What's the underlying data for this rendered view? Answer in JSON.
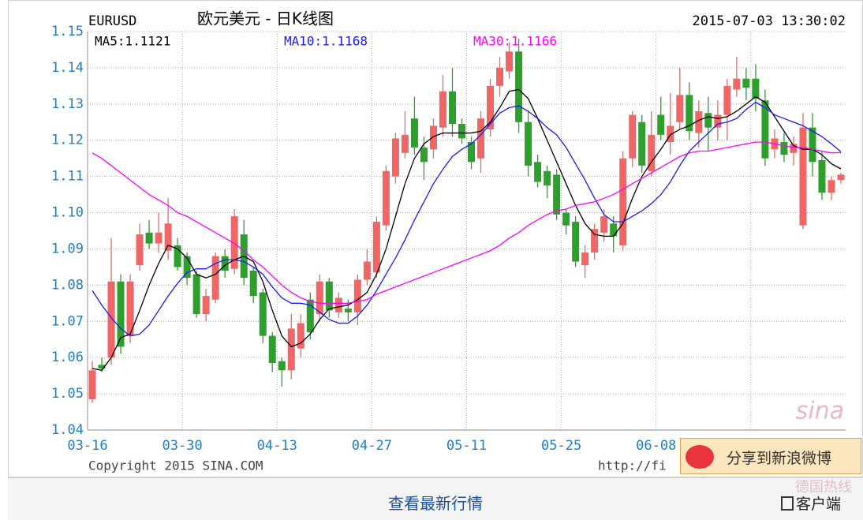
{
  "chart_data": {
    "type": "candlestick",
    "symbol": "EURUSD",
    "title": "欧元美元 - 日K线图",
    "timestamp": "2015-07-03 13:30:02",
    "categories": [
      "03-16",
      null,
      null,
      null,
      null,
      null,
      null,
      null,
      null,
      null,
      "03-30",
      null,
      null,
      null,
      null,
      null,
      null,
      null,
      null,
      null,
      "04-13",
      null,
      null,
      null,
      null,
      null,
      null,
      null,
      null,
      null,
      "04-27",
      null,
      null,
      null,
      null,
      null,
      null,
      null,
      null,
      null,
      "05-11",
      null,
      null,
      null,
      null,
      null,
      null,
      null,
      null,
      null,
      "05-25",
      null,
      null,
      null,
      null,
      null,
      null,
      null,
      null,
      null,
      "06-08",
      null,
      null,
      null,
      null,
      null,
      null,
      null,
      null,
      null,
      null,
      null,
      null,
      null,
      null,
      null,
      null,
      null,
      null,
      null
    ],
    "open": [
      1.0485,
      1.058,
      1.06,
      1.081,
      1.066,
      1.0855,
      1.0945,
      1.0915,
      1.0895,
      1.091,
      1.088,
      1.083,
      1.072,
      1.076,
      1.088,
      1.0845,
      1.094,
      1.084,
      1.078,
      1.066,
      1.059,
      1.0565,
      1.0625,
      1.076,
      1.072,
      1.081,
      1.0725,
      1.0735,
      1.0725,
      1.0815,
      1.0835,
      1.0965,
      1.11,
      1.1165,
      1.126,
      1.118,
      1.1175,
      1.1235,
      1.1335,
      1.1245,
      1.1195,
      1.115,
      1.123,
      1.135,
      1.139,
      1.1445,
      1.125,
      1.114,
      1.1115,
      1.1105,
      1.1,
      1.0975,
      1.0855,
      1.089,
      1.0945,
      1.097,
      1.091,
      1.115,
      1.125,
      1.1115,
      1.127,
      1.1195,
      1.125,
      1.1325,
      1.122,
      1.1275,
      1.1235,
      1.127,
      1.134,
      1.137,
      1.137,
      1.131,
      1.1175,
      1.1195,
      1.1165,
      1.0965,
      1.1235,
      1.1145,
      1.1055,
      1.109
    ],
    "high": [
      1.059,
      1.06,
      1.093,
      1.083,
      1.083,
      1.097,
      1.098,
      1.1,
      1.104,
      1.093,
      1.089,
      1.084,
      1.079,
      1.089,
      1.09,
      1.101,
      1.098,
      1.085,
      1.079,
      1.067,
      1.06,
      1.072,
      1.072,
      1.078,
      1.083,
      1.082,
      1.078,
      1.076,
      1.083,
      1.09,
      1.099,
      1.113,
      1.122,
      1.128,
      1.132,
      1.121,
      1.126,
      1.138,
      1.14,
      1.126,
      1.121,
      1.128,
      1.137,
      1.143,
      1.147,
      1.148,
      1.128,
      1.116,
      1.113,
      1.112,
      1.101,
      1.099,
      1.091,
      1.097,
      1.101,
      1.099,
      1.117,
      1.128,
      1.127,
      1.128,
      1.132,
      1.133,
      1.14,
      1.136,
      1.131,
      1.132,
      1.131,
      1.137,
      1.143,
      1.14,
      1.141,
      1.134,
      1.123,
      1.122,
      1.121,
      1.1275,
      1.1275,
      1.117,
      1.11,
      1.111
    ],
    "low": [
      1.0475,
      1.056,
      1.058,
      1.061,
      1.064,
      1.084,
      1.09,
      1.089,
      1.087,
      1.084,
      1.08,
      1.071,
      1.07,
      1.075,
      1.082,
      1.083,
      1.08,
      1.075,
      1.064,
      1.056,
      1.052,
      1.054,
      1.06,
      1.065,
      1.07,
      1.071,
      1.071,
      1.07,
      1.069,
      1.08,
      1.082,
      1.095,
      1.108,
      1.115,
      1.116,
      1.109,
      1.115,
      1.121,
      1.121,
      1.119,
      1.112,
      1.111,
      1.121,
      1.132,
      1.137,
      1.122,
      1.11,
      1.107,
      1.104,
      1.098,
      1.094,
      1.085,
      1.082,
      1.087,
      1.092,
      1.089,
      1.0895,
      1.1125,
      1.111,
      1.11,
      1.12,
      1.116,
      1.123,
      1.12,
      1.118,
      1.117,
      1.12,
      1.12,
      1.132,
      1.131,
      1.128,
      1.113,
      1.115,
      1.114,
      1.113,
      1.0955,
      1.11,
      1.1035,
      1.1035,
      1.108
    ],
    "close": [
      1.0565,
      1.057,
      1.081,
      1.063,
      1.081,
      1.094,
      1.0915,
      1.0945,
      1.097,
      1.085,
      1.082,
      1.072,
      1.077,
      1.088,
      1.084,
      1.099,
      1.082,
      1.077,
      1.066,
      1.0585,
      1.0565,
      1.068,
      1.0695,
      1.067,
      1.081,
      1.073,
      1.0765,
      1.0725,
      1.0815,
      1.0865,
      1.0975,
      1.1115,
      1.1205,
      1.1215,
      1.118,
      1.114,
      1.124,
      1.1335,
      1.1245,
      1.1205,
      1.114,
      1.126,
      1.135,
      1.14,
      1.1445,
      1.125,
      1.113,
      1.1085,
      1.1075,
      1.0995,
      1.0965,
      1.0865,
      1.089,
      1.0955,
      1.099,
      1.0935,
      1.115,
      1.127,
      1.113,
      1.1215,
      1.1215,
      1.124,
      1.1325,
      1.1225,
      1.128,
      1.1235,
      1.127,
      1.135,
      1.137,
      1.1345,
      1.1315,
      1.115,
      1.1205,
      1.116,
      1.119,
      1.1235,
      1.114,
      1.1055,
      1.109,
      1.1105
    ],
    "up_color": "#f26565",
    "down_color": "#2ba02b",
    "series": [
      {
        "name": "MA5:1.1121",
        "color": "#000000",
        "values": [
          1.057,
          1.0565,
          1.06,
          1.0655,
          1.0665,
          1.073,
          1.08,
          1.086,
          1.091,
          1.09,
          1.0875,
          1.083,
          1.082,
          1.083,
          1.0855,
          1.087,
          1.088,
          1.0865,
          1.081,
          1.073,
          1.066,
          1.063,
          1.064,
          1.0665,
          1.0705,
          1.0735,
          1.074,
          1.0745,
          1.076,
          1.078,
          1.083,
          1.09,
          1.099,
          1.108,
          1.115,
          1.119,
          1.121,
          1.122,
          1.122,
          1.122,
          1.122,
          1.1225,
          1.125,
          1.129,
          1.1335,
          1.134,
          1.1315,
          1.126,
          1.12,
          1.114,
          1.108,
          1.102,
          1.097,
          1.094,
          1.0935,
          1.0935,
          1.097,
          1.104,
          1.11,
          1.114,
          1.1175,
          1.1215,
          1.123,
          1.124,
          1.1255,
          1.1265,
          1.126,
          1.1265,
          1.128,
          1.13,
          1.132,
          1.1305,
          1.1265,
          1.1225,
          1.1185,
          1.1175,
          1.1175,
          1.116,
          1.1135,
          1.1121
        ]
      },
      {
        "name": "MA10:1.1168",
        "color": "#1a1aff",
        "values": [
          1.0785,
          1.0745,
          1.071,
          1.068,
          1.066,
          1.0665,
          1.069,
          1.073,
          1.077,
          1.0805,
          1.0835,
          1.0845,
          1.0845,
          1.086,
          1.087,
          1.087,
          1.0865,
          1.085,
          1.083,
          1.0795,
          1.0765,
          1.075,
          1.075,
          1.0745,
          1.0725,
          1.0705,
          1.0695,
          1.0695,
          1.0715,
          1.0745,
          1.0785,
          1.083,
          1.0875,
          1.0925,
          1.098,
          1.103,
          1.108,
          1.112,
          1.1155,
          1.1175,
          1.119,
          1.1215,
          1.1245,
          1.1275,
          1.129,
          1.1295,
          1.128,
          1.126,
          1.1235,
          1.1215,
          1.118,
          1.1135,
          1.109,
          1.104,
          1.0995,
          1.0975,
          1.0975,
          1.099,
          1.1005,
          1.1025,
          1.105,
          1.1085,
          1.113,
          1.117,
          1.1195,
          1.122,
          1.1245,
          1.125,
          1.126,
          1.1285,
          1.1305,
          1.129,
          1.127,
          1.126,
          1.125,
          1.124,
          1.1225,
          1.121,
          1.119,
          1.1168
        ]
      },
      {
        "name": "MA30:1.1166",
        "color": "#ff00ff",
        "values": [
          1.1165,
          1.115,
          1.113,
          1.111,
          1.109,
          1.107,
          1.105,
          1.1035,
          1.102,
          1.1,
          1.099,
          1.0975,
          1.096,
          1.0945,
          1.093,
          1.0915,
          1.0895,
          1.087,
          1.085,
          1.0825,
          1.08,
          1.078,
          1.0765,
          1.0755,
          1.075,
          1.075,
          1.075,
          1.075,
          1.0755,
          1.076,
          1.0775,
          1.0785,
          1.0795,
          1.0805,
          1.0815,
          1.0825,
          1.0835,
          1.0845,
          1.0855,
          1.0865,
          1.0875,
          1.0885,
          1.0895,
          1.091,
          1.093,
          1.0945,
          1.0965,
          1.098,
          1.0995,
          1.1005,
          1.101,
          1.102,
          1.1025,
          1.103,
          1.104,
          1.105,
          1.1065,
          1.108,
          1.1095,
          1.111,
          1.1125,
          1.114,
          1.1155,
          1.1165,
          1.117,
          1.117,
          1.1175,
          1.118,
          1.1185,
          1.119,
          1.1195,
          1.1195,
          1.119,
          1.1185,
          1.118,
          1.118,
          1.1175,
          1.117,
          1.1165,
          1.1166
        ]
      }
    ],
    "ylim": [
      1.04,
      1.15
    ],
    "yticks": [
      1.04,
      1.05,
      1.06,
      1.07,
      1.08,
      1.09,
      {
        "value": 1.1,
        "label": "1.10"
      },
      1.11,
      1.12,
      1.13,
      1.14,
      1.15
    ],
    "grid": true,
    "watermark": "sina"
  },
  "footer": {
    "copyright": "Copyright 2015 SINA.COM",
    "url": "http://fi"
  },
  "share_button": "分享到新浪微博",
  "bottom_bar": {
    "link": "查看最新行情",
    "client": "客户端",
    "watermark": "德国热线"
  }
}
